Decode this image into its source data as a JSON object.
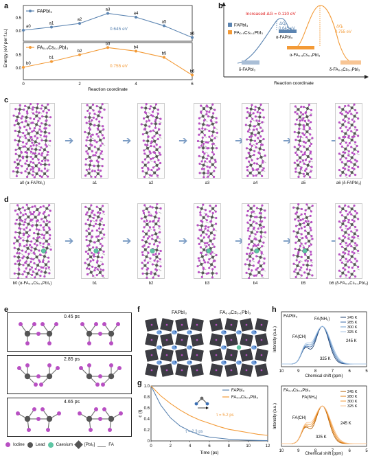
{
  "panel_letters": [
    "a",
    "b",
    "c",
    "d",
    "e",
    "f",
    "g",
    "h"
  ],
  "panel_a": {
    "ylabel": "Energy (eV per f.u.)",
    "xlabel": "Reaction coordinate",
    "top": {
      "title": "FAPbI₃",
      "annotation": "0.645 eV",
      "points": [
        {
          "x": 0,
          "y": 0.0,
          "label": "a0"
        },
        {
          "x": 1,
          "y": 0.12,
          "label": "a1"
        },
        {
          "x": 2,
          "y": 0.26,
          "label": "a2"
        },
        {
          "x": 3,
          "y": 0.645,
          "label": "a3"
        },
        {
          "x": 4,
          "y": 0.5,
          "label": "a4"
        },
        {
          "x": 5,
          "y": 0.17,
          "label": "a5"
        },
        {
          "x": 6,
          "y": -0.28,
          "label": "a6"
        }
      ],
      "yticks": [
        "0.5",
        "0.0"
      ]
    },
    "bottom": {
      "title": "FA₀.₉Cs₀.₁PbI₃",
      "annotation": "0.755 eV",
      "points": [
        {
          "x": 0,
          "y": 0.0,
          "label": "b0"
        },
        {
          "x": 1,
          "y": 0.22,
          "label": "b1"
        },
        {
          "x": 2,
          "y": 0.48,
          "label": "b2"
        },
        {
          "x": 3,
          "y": 0.755,
          "label": "b3"
        },
        {
          "x": 4,
          "y": 0.62,
          "label": "b4"
        },
        {
          "x": 5,
          "y": 0.38,
          "label": "b5"
        },
        {
          "x": 6,
          "y": -0.3,
          "label": "b6"
        }
      ],
      "yticks": [
        "0.5",
        "0.0"
      ]
    },
    "xticks": [
      "0",
      "2",
      "4",
      "6"
    ]
  },
  "panel_b": {
    "title_increase": "Increased ΔG = 0.110 eV",
    "legend": [
      "FAPbI₃",
      "FA₀.₉Cs₀.₁PbI₃"
    ],
    "dg_left_label": "ΔG",
    "dg_left_sub": "a",
    "dg_left_value": "0.645 eV",
    "dg_right_label": "ΔG",
    "dg_right_sub": "b",
    "dg_right_value": "0.755 eV",
    "state_alpha_fa": "α-FAPbI₃",
    "state_alpha_facs": "α-FA₀.₉Cs₀.₁PbI₃",
    "state_delta_fa": "δ-FAPbI₃",
    "state_delta_facs": "δ-FA₀.₉Cs₀.₁PbI₃",
    "xlabel": "Reaction coordinate",
    "colors": {
      "fa": "#5b84b1",
      "facs": "#f39a36",
      "red": "#e02020"
    }
  },
  "panel_c": {
    "labels": [
      "a0 (α-FAPbI₃)",
      "a1",
      "a2",
      "a3",
      "a4",
      "a5",
      "a6 (δ-FAPbI₃)"
    ]
  },
  "panel_d": {
    "labels": [
      "b0 (α-FA₀.₉Cs₀.₁PbI₃)",
      "b1",
      "b2",
      "b3",
      "b4",
      "b5",
      "b6 (δ-FA₀.₉Cs₀.₁PbI₃)"
    ]
  },
  "panel_e": {
    "times": [
      "0.45 ps",
      "2.85 ps",
      "4.65 ps"
    ],
    "legend": [
      "Iodine",
      "Lead",
      "Caesium",
      "[PbI₆]",
      "FA"
    ]
  },
  "panel_f": {
    "left_title": "FAPbI₃",
    "right_title": "FA₀.₉Cs₀.₁PbI₃"
  },
  "panel_g": {
    "ylabel": "c (t)",
    "xlabel": "Time (ps)",
    "legend": [
      "FAPbI₃",
      "FA₀.₉Cs₀.₁PbI₃"
    ],
    "tau_fa": "τ = 2.3 ps",
    "tau_facs": "τ = 5.2 ps",
    "xticks": [
      "0",
      "2",
      "4",
      "6",
      "8",
      "10",
      "12"
    ],
    "yticks": [
      "0",
      "0.2",
      "0.4",
      "0.6",
      "0.8",
      "1.0"
    ]
  },
  "panel_h": {
    "ylabel": "Intensity (a.u.)",
    "xlabel": "Chemical shift (ppm)",
    "top": {
      "title": "FAPbI₃",
      "peak_nh2": "FA(NH₂)",
      "peak_ch": "FA(CH)",
      "temps": [
        "245 K",
        "285 K",
        "300 K",
        "325 K"
      ],
      "temp_low": "245 K",
      "temp_high": "325 K"
    },
    "bottom": {
      "title": "FA₀.₉Cs₀.₁PbI₃",
      "peak_nh2": "FA(NH₂)",
      "peak_ch": "FA(CH)",
      "temps": [
        "245 K",
        "280 K",
        "300 K",
        "325 K"
      ],
      "temp_low": "245 K",
      "temp_high": "325 K"
    },
    "xticks": [
      "10",
      "9",
      "8",
      "7",
      "6",
      "5"
    ]
  },
  "chart_data": [
    {
      "type": "line",
      "title": "FAPbI₃",
      "xlabel": "Reaction coordinate",
      "ylabel": "Energy (eV per f.u.)",
      "x": [
        0,
        1,
        2,
        3,
        4,
        5,
        6
      ],
      "series": [
        {
          "name": "FAPbI₃",
          "values": [
            0.0,
            0.12,
            0.26,
            0.645,
            0.5,
            0.17,
            -0.28
          ]
        }
      ]
    },
    {
      "type": "line",
      "title": "FA₀.₉Cs₀.₁PbI₃",
      "xlabel": "Reaction coordinate",
      "ylabel": "Energy (eV per f.u.)",
      "x": [
        0,
        1,
        2,
        3,
        4,
        5,
        6
      ],
      "series": [
        {
          "name": "FA₀.₉Cs₀.₁PbI₃",
          "values": [
            0.0,
            0.22,
            0.48,
            0.755,
            0.62,
            0.38,
            -0.3
          ]
        }
      ]
    },
    {
      "type": "line",
      "xlabel": "Time (ps)",
      "ylabel": "c (t)",
      "x": [
        0,
        1,
        2,
        3,
        4,
        5,
        6,
        7,
        8,
        9,
        10,
        11,
        12
      ],
      "series": [
        {
          "name": "FAPbI₃",
          "values": [
            1.0,
            0.65,
            0.42,
            0.27,
            0.18,
            0.11,
            0.07,
            0.05,
            0.03,
            0.02,
            0.013,
            0.008,
            0.005
          ]
        },
        {
          "name": "FA₀.₉Cs₀.₁PbI₃",
          "values": [
            1.0,
            0.82,
            0.68,
            0.56,
            0.46,
            0.38,
            0.32,
            0.26,
            0.21,
            0.18,
            0.15,
            0.12,
            0.1
          ]
        }
      ]
    }
  ]
}
